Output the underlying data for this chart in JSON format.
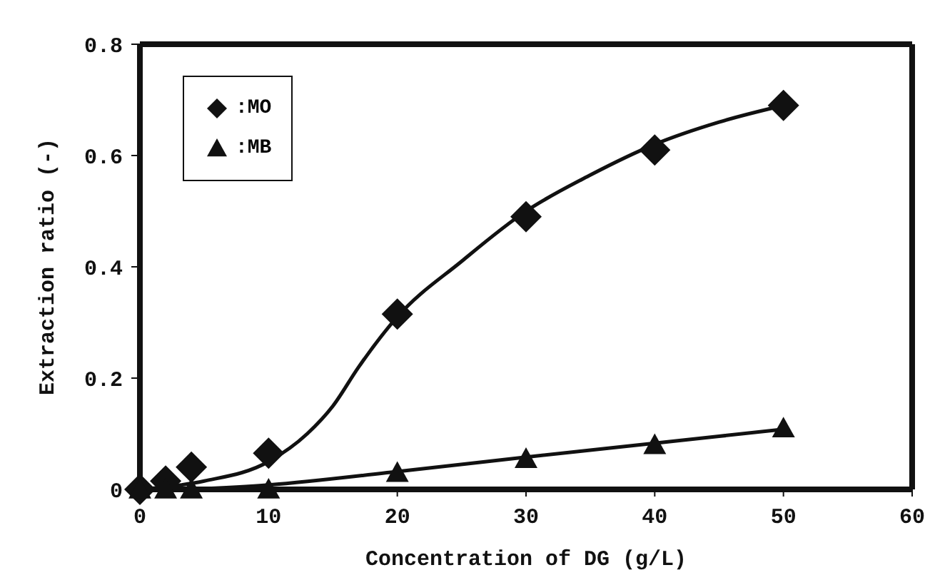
{
  "chart_data": {
    "type": "scatter",
    "xlabel": "Concentration of DG (g/L)",
    "ylabel": "Extraction ratio (-)",
    "x": [
      0,
      2,
      4,
      10,
      20,
      30,
      40,
      50
    ],
    "series": [
      {
        "name": ":MO",
        "color": "#111111",
        "marker": "diamond",
        "values": [
          0,
          0.015,
          0.04,
          0.065,
          0.315,
          0.49,
          0.61,
          0.69
        ]
      },
      {
        "name": ":MB",
        "color": "#111111",
        "marker": "triangle",
        "values": [
          0,
          0,
          0,
          0,
          0.03,
          0.055,
          0.08,
          0.11
        ]
      },
      {
        "type": "line",
        "color": "#111111",
        "marker": "none",
        "x": [
          0,
          5,
          10,
          13,
          15,
          17,
          20,
          25,
          30,
          35,
          40,
          45,
          50
        ],
        "values": [
          0,
          0.015,
          0.05,
          0.1,
          0.15,
          0.22,
          0.31,
          0.41,
          0.5,
          0.565,
          0.62,
          0.66,
          0.69
        ]
      },
      {
        "type": "line",
        "color": "#111111",
        "marker": "none",
        "x": [
          4,
          10,
          20,
          30,
          40,
          50
        ],
        "values": [
          0,
          0.008,
          0.032,
          0.058,
          0.083,
          0.108
        ]
      }
    ],
    "xlim": [
      0,
      60
    ],
    "xticks": [
      0,
      10,
      20,
      30,
      40,
      50,
      60
    ],
    "ylim": [
      0,
      0.8
    ],
    "yticks": [
      0,
      0.2,
      0.4,
      0.6,
      0.8
    ],
    "grid": false,
    "legend": "top left"
  }
}
